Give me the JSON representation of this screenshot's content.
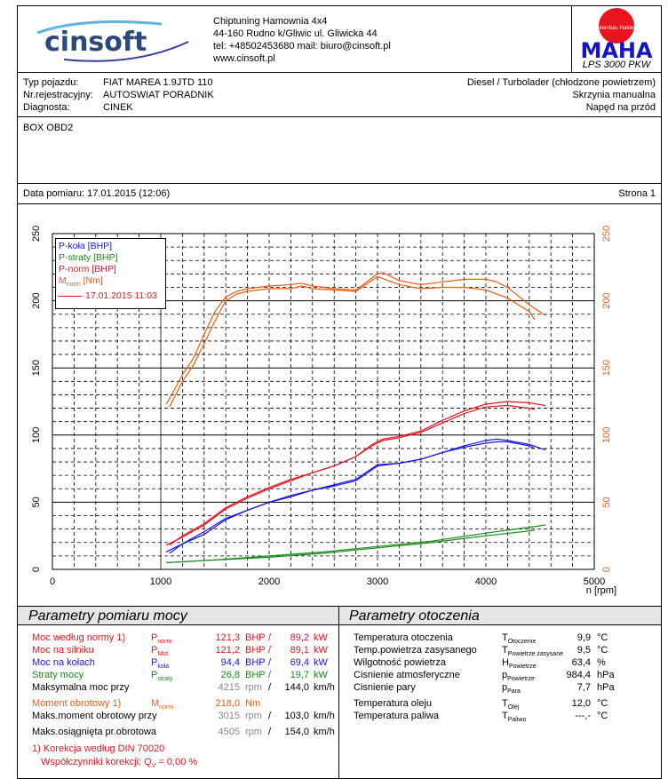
{
  "header": {
    "logo_text": "cinsoft",
    "company": "Chiptuning Hamownia 4x4",
    "address": "44-160 Rudno k/Gliwic ul. Gliwicka 44",
    "contact": "tel: +48502453680 mail: biuro@cinsoft.pl",
    "website": "www.cinsoft.pl",
    "maha_ring": "Maschinenbau Haldenwang",
    "maha_logo": "MAHA",
    "model": "LPS 3000 PKW"
  },
  "vehicle": {
    "type_label": "Typ pojazdu:",
    "type": "FIAT MAREA 1.9JTD 110",
    "reg_label": "Nr.rejestracyjny:",
    "reg": "AUTOSWIAT PORADNIK",
    "diag_label": "Diagnosta:",
    "diag": "CINEK",
    "engine": "Diesel / Turbolader (chłodzone powietrzem)",
    "gearbox": "Skrzynia manualna",
    "drive": "Napęd na przód"
  },
  "notes": "BOX OBD2",
  "measurement": {
    "date": "Data pomiaru: 17.01.2015 (12:06)",
    "page": "Strona 1"
  },
  "chart_data": {
    "type": "line",
    "xlabel": "n [rpm]",
    "xlim": [
      0,
      5000
    ],
    "ylim": [
      0,
      250
    ],
    "xticks": [
      "0",
      "1000",
      "2000",
      "3000",
      "4000",
      "5000"
    ],
    "yticks": [
      "0",
      "50",
      "100",
      "150",
      "200",
      "250"
    ],
    "grid": true,
    "legend_position": "top-left",
    "legend": [
      "P-koła [BHP]",
      "P-straty [BHP]",
      "P-norm [BHP]",
      "M",
      "norm",
      " [Nm]",
      "17.01.2015 11:03"
    ],
    "colors": {
      "pkola": "#1414e6",
      "pstraty": "#1a8a1a",
      "pnorm": "#e8141e",
      "mnorm": "#f05a14"
    },
    "series": [
      {
        "name": "M-norm run 1",
        "key": "mnorm",
        "x": [
          1050,
          1100,
          1200,
          1300,
          1400,
          1500,
          1600,
          1700,
          1800,
          2000,
          2200,
          2300,
          2400,
          2600,
          2800,
          3000,
          3050,
          3200,
          3400,
          3600,
          3800,
          4000,
          4100,
          4200,
          4400,
          4550
        ],
        "y": [
          123,
          130,
          145,
          157,
          175,
          192,
          203,
          207,
          209,
          211,
          212,
          213,
          211,
          209,
          208,
          220,
          221,
          215,
          212,
          214,
          216,
          216,
          214,
          210,
          197,
          189
        ]
      },
      {
        "name": "M-norm run 2",
        "key": "mnorm",
        "x": [
          1080,
          1200,
          1300,
          1400,
          1500,
          1600,
          1700,
          1800,
          2000,
          2200,
          2300,
          2400,
          2600,
          2800,
          3000,
          3200,
          3400,
          3600,
          3800,
          4000,
          4200,
          4400,
          4450
        ],
        "y": [
          121,
          140,
          152,
          168,
          185,
          200,
          205,
          207,
          209,
          209,
          211,
          209,
          208,
          207,
          218,
          212,
          209,
          210,
          210,
          208,
          202,
          192,
          186
        ]
      },
      {
        "name": "P-norm run 1",
        "key": "pnorm",
        "x": [
          1050,
          1200,
          1400,
          1600,
          1800,
          2000,
          2200,
          2400,
          2600,
          2800,
          2950,
          3050,
          3200,
          3400,
          3600,
          3800,
          4000,
          4200,
          4400,
          4450
        ],
        "y": [
          18,
          24,
          33,
          45,
          53,
          60,
          66,
          72,
          77,
          84,
          92,
          96,
          98,
          102,
          109,
          116,
          121,
          122,
          120,
          119
        ]
      },
      {
        "name": "P-norm run 2",
        "key": "pnorm",
        "x": [
          1080,
          1200,
          1400,
          1600,
          1800,
          2000,
          2200,
          2400,
          2600,
          2800,
          2950,
          3050,
          3200,
          3400,
          3600,
          3800,
          4000,
          4200,
          4400,
          4550
        ],
        "y": [
          18,
          25,
          34,
          46,
          54,
          61,
          67,
          72,
          77,
          84,
          93,
          97,
          99,
          103,
          111,
          118,
          123,
          125,
          124,
          122
        ]
      },
      {
        "name": "P-koła run 1",
        "key": "pkola",
        "x": [
          1050,
          1200,
          1400,
          1600,
          1800,
          2000,
          2200,
          2400,
          2600,
          2800,
          3000,
          3200,
          3400,
          3600,
          3800,
          4000,
          4100,
          4200,
          4400,
          4450
        ],
        "y": [
          13,
          19,
          26,
          37,
          44,
          50,
          54,
          59,
          62,
          66,
          77,
          79,
          82,
          87,
          91,
          94,
          95,
          95,
          92,
          90
        ]
      },
      {
        "name": "P-koła run 2",
        "key": "pkola",
        "x": [
          1080,
          1200,
          1400,
          1600,
          1800,
          2000,
          2200,
          2400,
          2600,
          2800,
          3000,
          3200,
          3400,
          3600,
          3800,
          4000,
          4100,
          4200,
          4400,
          4550
        ],
        "y": [
          12,
          19,
          28,
          38,
          44,
          50,
          55,
          59,
          63,
          67,
          78,
          79,
          82,
          87,
          92,
          96,
          97,
          96,
          93,
          89
        ]
      },
      {
        "name": "P-straty run 1",
        "key": "pstraty",
        "x": [
          1050,
          1500,
          2000,
          2500,
          3000,
          3500,
          4000,
          4450
        ],
        "y": [
          5,
          7,
          9,
          12,
          16,
          20,
          25,
          29
        ]
      },
      {
        "name": "P-straty run 2",
        "key": "pstraty",
        "x": [
          1050,
          1500,
          2000,
          2500,
          3000,
          3500,
          4000,
          4550
        ],
        "y": [
          5,
          7,
          10,
          13,
          17,
          21,
          27,
          33
        ]
      }
    ]
  },
  "power": {
    "title": "Parametry pomiaru mocy",
    "rows": [
      {
        "label": "Moc według normy 1)",
        "sym": "P",
        "sub": "norm",
        "v1": "121,3",
        "u1": "BHP",
        "sep": "/",
        "v2": "89,2",
        "u2": "kW",
        "cls": "red"
      },
      {
        "label": "Moc na silniku",
        "sym": "P",
        "sub": "Mot",
        "v1": "121,2",
        "u1": "BHP",
        "sep": "/",
        "v2": "89,1",
        "u2": "kW",
        "cls": "red"
      },
      {
        "label": "Moc na kołach",
        "sym": "P",
        "sub": "koła",
        "v1": "94,4",
        "u1": "BHP",
        "sep": "/",
        "v2": "69,4",
        "u2": "kW",
        "cls": "blue"
      },
      {
        "label": "Straty mocy",
        "sym": "P",
        "sub": "straty",
        "v1": "26,8",
        "u1": "BHP",
        "sep": "/",
        "v2": "19,7",
        "u2": "kW",
        "cls": "green"
      },
      {
        "label": "Maksymalna moc przy",
        "sym": "",
        "sub": "",
        "v1": "4215",
        "u1": "rpm",
        "sep": "/",
        "v2": "144,0",
        "u2": "km/h",
        "cls": ""
      },
      {
        "label": "Moment obrotowy 1)",
        "sym": "M",
        "sub": "norm",
        "v1": "218,0",
        "u1": "Nm",
        "sep": "",
        "v2": "",
        "u2": "",
        "cls": "or"
      },
      {
        "label": "Maks.moment obrotowy przy",
        "sym": "",
        "sub": "",
        "v1": "3015",
        "u1": "rpm",
        "sep": "/",
        "v2": "103,0",
        "u2": "km/h",
        "cls": ""
      },
      {
        "label": "Maks.osiągnięta pr.obrotowa",
        "sym": "",
        "sub": "",
        "v1": "4505",
        "u1": "rpm",
        "sep": "/",
        "v2": "154,0",
        "u2": "km/h",
        "cls": ""
      }
    ],
    "note1": "1) Korekcja według DIN 70020",
    "note2": "Współczynniki korekcji: Q",
    "note2_sub": "V",
    "note2_val": " =   0,00 %"
  },
  "ambient": {
    "title": "Parametry otoczenia",
    "rows": [
      {
        "label": "Temperatura otoczenia",
        "sym": "T",
        "sub": "Otoczenie",
        "val": "9,9",
        "unit": "°C"
      },
      {
        "label": "Temp.powietrza zasysanego",
        "sym": "T",
        "sub": "Powietrze zasysane",
        "val": "9,5",
        "unit": "°C"
      },
      {
        "label": "Wilgotność powietrza",
        "sym": "H",
        "sub": "Powietrze",
        "val": "63,4",
        "unit": "%"
      },
      {
        "label": "Cisnienie atmosferyczne",
        "sym": "p",
        "sub": "Powietrze",
        "val": "984,4",
        "unit": "hPa"
      },
      {
        "label": "Cisnienie pary",
        "sym": "p",
        "sub": "Para",
        "val": "7,7",
        "unit": "hPa"
      },
      {
        "label": "Temperatura oleju",
        "sym": "T",
        "sub": "Olej",
        "val": "12,0",
        "unit": "°C"
      },
      {
        "label": "Temperatura paliwa",
        "sym": "T",
        "sub": "Paliwo",
        "val": "---,-",
        "unit": "°C"
      }
    ]
  }
}
